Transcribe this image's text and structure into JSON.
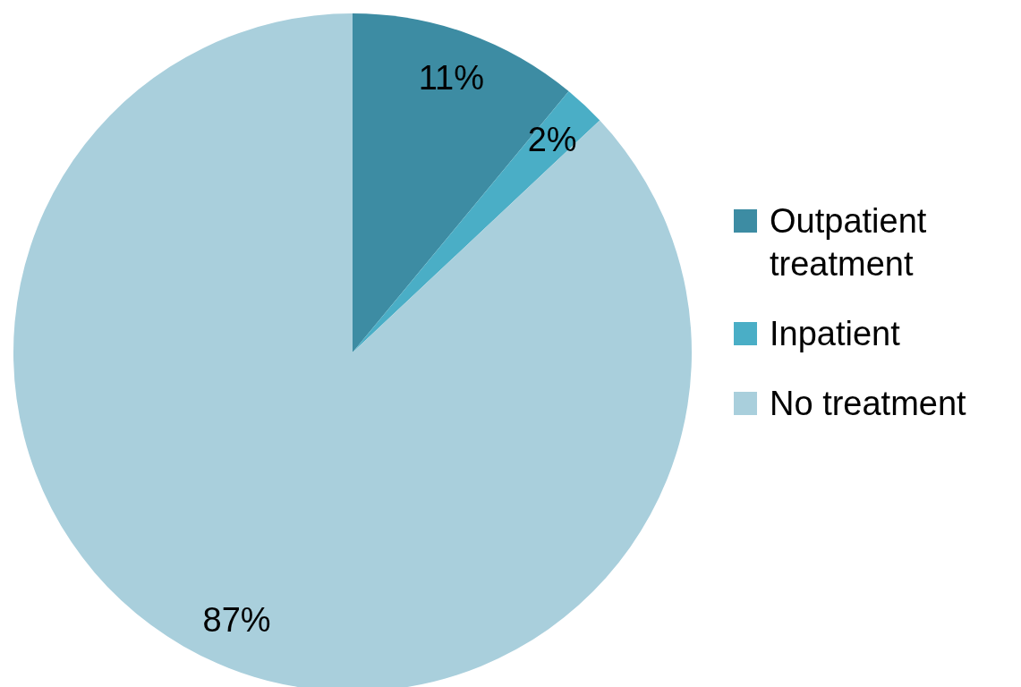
{
  "chart_data": {
    "type": "pie",
    "categories": [
      "Outpatient treatment",
      "Inpatient",
      "No treatment"
    ],
    "values": [
      11,
      2,
      87
    ],
    "colors": [
      "#3d8ca3",
      "#4aaec6",
      "#a9cfdc"
    ],
    "value_labels": [
      "11%",
      "2%",
      "87%"
    ],
    "legend": "right"
  }
}
